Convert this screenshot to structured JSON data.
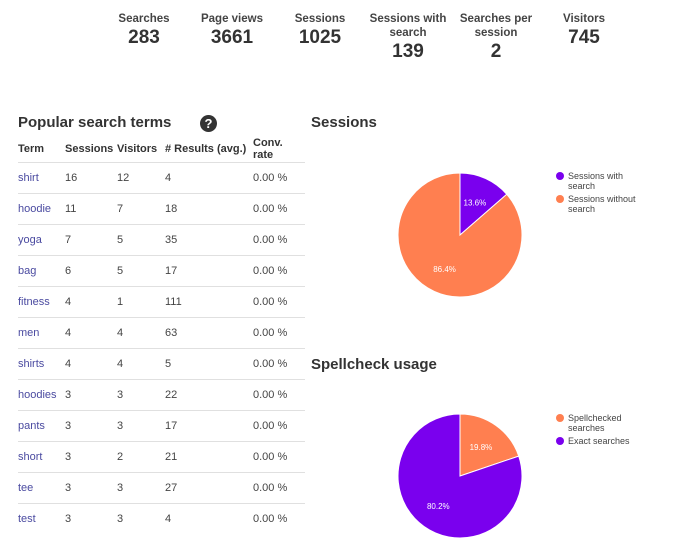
{
  "stats": [
    {
      "label": "Searches",
      "value": "283"
    },
    {
      "label": "Page views",
      "value": "3661"
    },
    {
      "label": "Sessions",
      "value": "1025"
    },
    {
      "label": "Sessions with search",
      "value": "139"
    },
    {
      "label": "Searches per session",
      "value": "2"
    },
    {
      "label": "Visitors",
      "value": "745"
    }
  ],
  "popular": {
    "title": "Popular search terms",
    "help_icon": "question-circle-icon",
    "columns": [
      "Term",
      "Sessions",
      "Visitors",
      "# Results (avg.)",
      "Conv. rate"
    ],
    "rows": [
      {
        "term": "shirt",
        "sessions": "16",
        "visitors": "12",
        "results": "4",
        "conv": "0.00 %"
      },
      {
        "term": "hoodie",
        "sessions": "11",
        "visitors": "7",
        "results": "18",
        "conv": "0.00 %"
      },
      {
        "term": "yoga",
        "sessions": "7",
        "visitors": "5",
        "results": "35",
        "conv": "0.00 %"
      },
      {
        "term": "bag",
        "sessions": "6",
        "visitors": "5",
        "results": "17",
        "conv": "0.00 %"
      },
      {
        "term": "fitness",
        "sessions": "4",
        "visitors": "1",
        "results": "111",
        "conv": "0.00 %"
      },
      {
        "term": "men",
        "sessions": "4",
        "visitors": "4",
        "results": "63",
        "conv": "0.00 %"
      },
      {
        "term": "shirts",
        "sessions": "4",
        "visitors": "4",
        "results": "5",
        "conv": "0.00 %"
      },
      {
        "term": "hoodies",
        "sessions": "3",
        "visitors": "3",
        "results": "22",
        "conv": "0.00 %"
      },
      {
        "term": "pants",
        "sessions": "3",
        "visitors": "3",
        "results": "17",
        "conv": "0.00 %"
      },
      {
        "term": "short",
        "sessions": "3",
        "visitors": "2",
        "results": "21",
        "conv": "0.00 %"
      },
      {
        "term": "tee",
        "sessions": "3",
        "visitors": "3",
        "results": "27",
        "conv": "0.00 %"
      },
      {
        "term": "test",
        "sessions": "3",
        "visitors": "3",
        "results": "4",
        "conv": "0.00 %"
      }
    ]
  },
  "sessions_chart": {
    "title": "Sessions",
    "slices": [
      {
        "name": "Sessions with search",
        "value": 13.6,
        "label": "13.6%",
        "color": "#7a00ee"
      },
      {
        "name": "Sessions without search",
        "value": 86.4,
        "label": "86.4%",
        "color": "#ff7f50"
      }
    ]
  },
  "spellcheck_chart": {
    "title": "Spellcheck usage",
    "slices": [
      {
        "name": "Spellchecked searches",
        "value": 19.8,
        "label": "19.8%",
        "color": "#ff7f50"
      },
      {
        "name": "Exact searches",
        "value": 80.2,
        "label": "80.2%",
        "color": "#7a00ee"
      }
    ]
  },
  "chart_data": [
    {
      "type": "pie",
      "title": "Sessions",
      "categories": [
        "Sessions with search",
        "Sessions without search"
      ],
      "values": [
        13.6,
        86.4
      ]
    },
    {
      "type": "pie",
      "title": "Spellcheck usage",
      "categories": [
        "Spellchecked searches",
        "Exact searches"
      ],
      "values": [
        19.8,
        80.2
      ]
    }
  ]
}
